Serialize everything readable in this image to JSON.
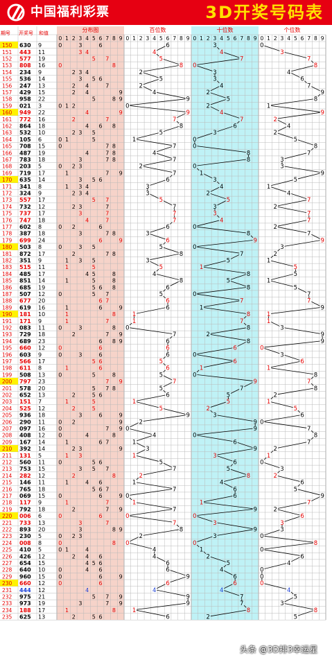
{
  "header": {
    "brand": "中国福利彩票",
    "title": "3D开奖号码表"
  },
  "watermark": "头条 @3D排3幸运星",
  "colors": {
    "header_bg": "#e60012",
    "title": "#ffe100",
    "distribution_bg": "#f6d3c9",
    "hundreds_bg": "#ffffff",
    "tens_bg": "#bff2f6",
    "ones_bg": "#ffffff",
    "grid": "#b9b9b9",
    "number_red": "#e60000",
    "number_blue": "#1a3fd6",
    "number_black": "#000000",
    "issue_bg": "#fff200",
    "line": "#000000"
  },
  "chart_data": {
    "type": "table",
    "columns": {
      "issue": "期号",
      "number": "开奖号",
      "sum": "和值",
      "distribution": "分布图",
      "hundreds": "百位数",
      "tens": "十位数",
      "ones": "个位数"
    },
    "digits": [
      "0",
      "1",
      "2",
      "3",
      "4",
      "5",
      "6",
      "7",
      "8",
      "9"
    ],
    "rows": [
      {
        "issue": "150",
        "number": "630",
        "sum": 9
      },
      {
        "issue": "151",
        "number": "443",
        "sum": 11
      },
      {
        "issue": "152",
        "number": "577",
        "sum": 19
      },
      {
        "issue": "153",
        "number": "808",
        "sum": 16
      },
      {
        "issue": "154",
        "number": "234",
        "sum": 9
      },
      {
        "issue": "155",
        "number": "536",
        "sum": 14
      },
      {
        "issue": "156",
        "number": "247",
        "sum": 13
      },
      {
        "issue": "157",
        "number": "429",
        "sum": 15
      },
      {
        "issue": "158",
        "number": "958",
        "sum": 22
      },
      {
        "issue": "159",
        "number": "021",
        "sum": 3
      },
      {
        "issue": "160",
        "number": "949",
        "sum": 22
      },
      {
        "issue": "161",
        "number": "772",
        "sum": 16
      },
      {
        "issue": "162",
        "number": "864",
        "sum": 18
      },
      {
        "issue": "163",
        "number": "532",
        "sum": 10
      },
      {
        "issue": "164",
        "number": "105",
        "sum": 6
      },
      {
        "issue": "165",
        "number": "708",
        "sum": 15
      },
      {
        "issue": "166",
        "number": "487",
        "sum": 19
      },
      {
        "issue": "167",
        "number": "783",
        "sum": 18
      },
      {
        "issue": "168",
        "number": "203",
        "sum": 5
      },
      {
        "issue": "169",
        "number": "719",
        "sum": 17
      },
      {
        "issue": "170",
        "number": "635",
        "sum": 14
      },
      {
        "issue": "171",
        "number": "341",
        "sum": 8
      },
      {
        "issue": "172",
        "number": "324",
        "sum": 9
      },
      {
        "issue": "173",
        "number": "557",
        "sum": 17
      },
      {
        "issue": "174",
        "number": "732",
        "sum": 12
      },
      {
        "issue": "175",
        "number": "737",
        "sum": 17
      },
      {
        "issue": "176",
        "number": "747",
        "sum": 18
      },
      {
        "issue": "177",
        "number": "602",
        "sum": 8
      },
      {
        "issue": "178",
        "number": "387",
        "sum": 18
      },
      {
        "issue": "179",
        "number": "699",
        "sum": 24
      },
      {
        "issue": "180",
        "number": "503",
        "sum": 8
      },
      {
        "issue": "181",
        "number": "872",
        "sum": 17
      },
      {
        "issue": "182",
        "number": "351",
        "sum": 9
      },
      {
        "issue": "183",
        "number": "515",
        "sum": 11
      },
      {
        "issue": "184",
        "number": "485",
        "sum": 17
      },
      {
        "issue": "185",
        "number": "851",
        "sum": 14
      },
      {
        "issue": "186",
        "number": "685",
        "sum": 19
      },
      {
        "issue": "187",
        "number": "507",
        "sum": 12
      },
      {
        "issue": "188",
        "number": "677",
        "sum": 20
      },
      {
        "issue": "189",
        "number": "619",
        "sum": 16
      },
      {
        "issue": "190",
        "number": "181",
        "sum": 10
      },
      {
        "issue": "191",
        "number": "171",
        "sum": 9
      },
      {
        "issue": "192",
        "number": "083",
        "sum": 11
      },
      {
        "issue": "193",
        "number": "729",
        "sum": 18
      },
      {
        "issue": "194",
        "number": "689",
        "sum": 23
      },
      {
        "issue": "195",
        "number": "660",
        "sum": 12
      },
      {
        "issue": "196",
        "number": "603",
        "sum": 9
      },
      {
        "issue": "197",
        "number": "566",
        "sum": 17
      },
      {
        "issue": "198",
        "number": "611",
        "sum": 8
      },
      {
        "issue": "199",
        "number": "508",
        "sum": 13
      },
      {
        "issue": "200",
        "number": "797",
        "sum": 23
      },
      {
        "issue": "201",
        "number": "578",
        "sum": 20
      },
      {
        "issue": "202",
        "number": "652",
        "sum": 13
      },
      {
        "issue": "203",
        "number": "151",
        "sum": 7
      },
      {
        "issue": "204",
        "number": "525",
        "sum": 12
      },
      {
        "issue": "205",
        "number": "936",
        "sum": 18
      },
      {
        "issue": "206",
        "number": "290",
        "sum": 11
      },
      {
        "issue": "207",
        "number": "097",
        "sum": 16
      },
      {
        "issue": "208",
        "number": "408",
        "sum": 12
      },
      {
        "issue": "209",
        "number": "167",
        "sum": 14
      },
      {
        "issue": "210",
        "number": "392",
        "sum": 14
      },
      {
        "issue": "211",
        "number": "131",
        "sum": 5
      },
      {
        "issue": "212",
        "number": "560",
        "sum": 11
      },
      {
        "issue": "213",
        "number": "753",
        "sum": 15
      },
      {
        "issue": "214",
        "number": "282",
        "sum": 12
      },
      {
        "issue": "215",
        "number": "146",
        "sum": 11
      },
      {
        "issue": "216",
        "number": "765",
        "sum": 18
      },
      {
        "issue": "217",
        "number": "069",
        "sum": 15
      },
      {
        "issue": "218",
        "number": "117",
        "sum": 9
      },
      {
        "issue": "219",
        "number": "792",
        "sum": 18
      },
      {
        "issue": "220",
        "number": "006",
        "sum": 6
      },
      {
        "issue": "221",
        "number": "733",
        "sum": 13
      },
      {
        "issue": "222",
        "number": "893",
        "sum": 20
      },
      {
        "issue": "223",
        "number": "230",
        "sum": 5
      },
      {
        "issue": "224",
        "number": "008",
        "sum": 8
      },
      {
        "issue": "225",
        "number": "410",
        "sum": 5
      },
      {
        "issue": "226",
        "number": "426",
        "sum": 12
      },
      {
        "issue": "227",
        "number": "654",
        "sum": 15
      },
      {
        "issue": "228",
        "number": "640",
        "sum": 10
      },
      {
        "issue": "229",
        "number": "960",
        "sum": 15
      },
      {
        "issue": "230",
        "number": "660",
        "sum": 12
      },
      {
        "issue": "231",
        "number": "444",
        "sum": 12
      },
      {
        "issue": "232",
        "number": "975",
        "sum": 21
      },
      {
        "issue": "233",
        "number": "973",
        "sum": 19
      },
      {
        "issue": "234",
        "number": "188",
        "sum": 17
      },
      {
        "issue": "235",
        "number": "625",
        "sum": 13
      }
    ]
  }
}
